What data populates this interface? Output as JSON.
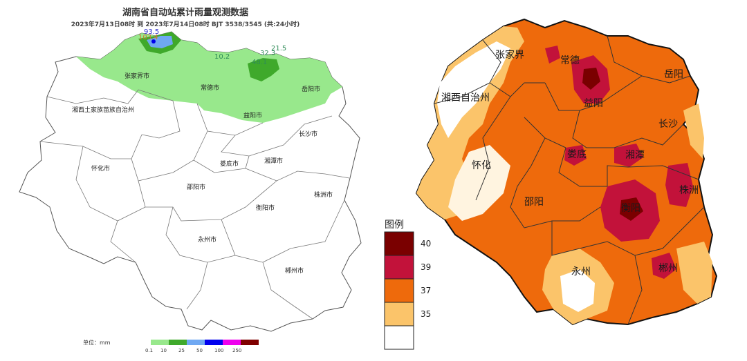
{
  "left_map": {
    "title": "湖南省自动站累计雨量观测数据",
    "subtitle": "2023年7月13日08时 到 2023年7月14日08时 BJT 3538/3545 (共:24小时)",
    "cities": [
      "张家界市",
      "常德市",
      "岳阳市",
      "湘西土家族苗族自治州",
      "益阳市",
      "长沙市",
      "怀化市",
      "娄底市",
      "湘潭市",
      "邵阳市",
      "株洲市",
      "衡阳市",
      "永州市",
      "郴州市"
    ],
    "rain_labels": [
      {
        "text": "93.5",
        "color": "#3333cc"
      },
      {
        "text": "103.4",
        "color": "#cc7a33"
      },
      {
        "text": "10.2",
        "color": "#2e8b57"
      },
      {
        "text": "21.5",
        "color": "#2e8b57"
      },
      {
        "text": "32.3",
        "color": "#2e8b57"
      },
      {
        "text": "48.1",
        "color": "#2e8b57"
      }
    ],
    "unit_label": "单位：mm",
    "scale": {
      "colors": [
        "#98e88c",
        "#3fa92b",
        "#6fa8f2",
        "#0000ee",
        "#ee00ee",
        "#7f0000"
      ],
      "ticks": [
        "0.1",
        "10",
        "25",
        "50",
        "100",
        "250"
      ]
    }
  },
  "right_map": {
    "cities": [
      "张家界",
      "常德",
      "岳阳",
      "湘西自治州",
      "益阳",
      "长沙",
      "怀化",
      "娄底",
      "湘潭",
      "株洲",
      "邵阳",
      "衡阳",
      "永州",
      "郴州"
    ],
    "legend": {
      "title": "图例",
      "items": [
        {
          "label": "40",
          "color": "#7a0000"
        },
        {
          "label": "39",
          "color": "#c2123a"
        },
        {
          "label": "37",
          "color": "#ee6a0c"
        },
        {
          "label": "35",
          "color": "#fbc46a"
        },
        {
          "label": "",
          "color": "#ffffff"
        }
      ]
    }
  }
}
